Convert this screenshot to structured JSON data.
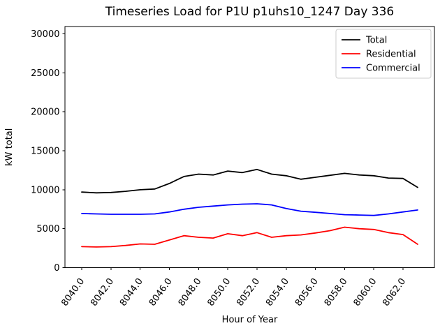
{
  "figure": {
    "title": "Timeseries Load for P1U p1uhs10_1247  Day 336",
    "xlabel": "Hour of Year",
    "ylabel": "kW total"
  },
  "legend": {
    "position": "upper-right",
    "entries": [
      {
        "label": "Total",
        "color": "#000000"
      },
      {
        "label": "Residential",
        "color": "#ff0000"
      },
      {
        "label": "Commercial",
        "color": "#0000ff"
      }
    ]
  },
  "chart_data": {
    "type": "line",
    "title": "Timeseries Load for P1U p1uhs10_1247  Day 336",
    "xlabel": "Hour of Year",
    "ylabel": "kW total",
    "grid": false,
    "legend_position": "upper right",
    "xlim": [
      8038.85,
      8064.15
    ],
    "ylim": [
      0,
      30950
    ],
    "x": [
      8040,
      8041,
      8042,
      8043,
      8044,
      8045,
      8046,
      8047,
      8048,
      8049,
      8050,
      8051,
      8052,
      8053,
      8054,
      8055,
      8056,
      8057,
      8058,
      8059,
      8060,
      8061,
      8062,
      8063
    ],
    "series": [
      {
        "name": "Total",
        "color": "#000000",
        "values": [
          9700,
          9600,
          9650,
          9800,
          10000,
          10100,
          10800,
          11700,
          12000,
          11900,
          12400,
          12200,
          12600,
          12000,
          11800,
          11350,
          11600,
          11850,
          12100,
          11900,
          11800,
          11500,
          11450,
          10300
        ]
      },
      {
        "name": "Residential",
        "color": "#ff0000",
        "values": [
          2700,
          2650,
          2700,
          2850,
          3050,
          3000,
          3550,
          4100,
          3900,
          3800,
          4350,
          4100,
          4500,
          3900,
          4100,
          4200,
          4450,
          4750,
          5200,
          5000,
          4900,
          4500,
          4250,
          3000
        ]
      },
      {
        "name": "Commercial",
        "color": "#0000ff",
        "values": [
          6950,
          6900,
          6850,
          6850,
          6850,
          6900,
          7150,
          7500,
          7750,
          7900,
          8050,
          8150,
          8200,
          8050,
          7600,
          7250,
          7100,
          6950,
          6800,
          6750,
          6700,
          6900,
          7150,
          7400
        ]
      }
    ],
    "x_ticks": {
      "values": [
        8040,
        8042,
        8044,
        8046,
        8048,
        8050,
        8052,
        8054,
        8056,
        8058,
        8060,
        8062
      ],
      "labels": [
        "8040.0",
        "8042.0",
        "8044.0",
        "8046.0",
        "8048.0",
        "8050.0",
        "8052.0",
        "8054.0",
        "8056.0",
        "8058.0",
        "8060.0",
        "8062.0"
      ]
    },
    "y_ticks": {
      "values": [
        0,
        5000,
        10000,
        15000,
        20000,
        25000,
        30000
      ],
      "labels": [
        "0",
        "5000",
        "10000",
        "15000",
        "20000",
        "25000",
        "30000"
      ]
    }
  }
}
